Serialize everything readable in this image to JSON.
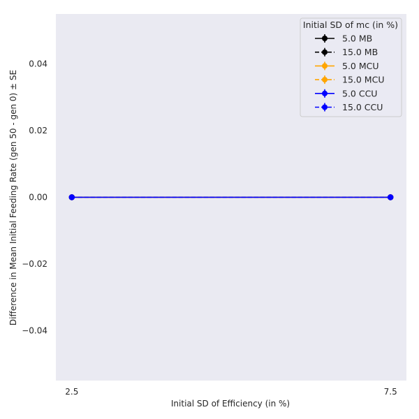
{
  "chart_data": {
    "type": "line",
    "title": "",
    "xlabel": "Initial SD of Efficiency (in %)",
    "ylabel": "Difference in Mean Initial Feeding Rate (gen 50 - gen 0) ± SE",
    "x": [
      2.5,
      7.5
    ],
    "x_tick_labels": [
      "2.5",
      "7.5"
    ],
    "xlim": [
      2.25,
      7.75
    ],
    "ylim": [
      -0.055,
      0.055
    ],
    "y_ticks": [
      -0.04,
      -0.02,
      0.0,
      0.02,
      0.04
    ],
    "y_tick_labels": [
      "−0.04",
      "−0.02",
      "0.00",
      "0.02",
      "0.04"
    ],
    "grid": false,
    "background": "#eaeaf2",
    "legend": {
      "title": "Initial SD of mc (in %)",
      "placement": "top-right"
    },
    "series": [
      {
        "name": "5.0 MB",
        "values": [
          0.0,
          0.0
        ],
        "color": "#000000",
        "linestyle": "solid"
      },
      {
        "name": "15.0 MB",
        "values": [
          0.0,
          0.0
        ],
        "color": "#000000",
        "linestyle": "dashed"
      },
      {
        "name": "5.0 MCU",
        "values": [
          0.0,
          0.0
        ],
        "color": "#ffa500",
        "linestyle": "solid"
      },
      {
        "name": "15.0 MCU",
        "values": [
          0.0,
          0.0
        ],
        "color": "#ffa500",
        "linestyle": "dashed"
      },
      {
        "name": "5.0 CCU",
        "values": [
          0.0,
          0.0
        ],
        "color": "#0000ff",
        "linestyle": "solid"
      },
      {
        "name": "15.0 CCU",
        "values": [
          0.0,
          0.0
        ],
        "color": "#0000ff",
        "linestyle": "dashed"
      }
    ]
  }
}
